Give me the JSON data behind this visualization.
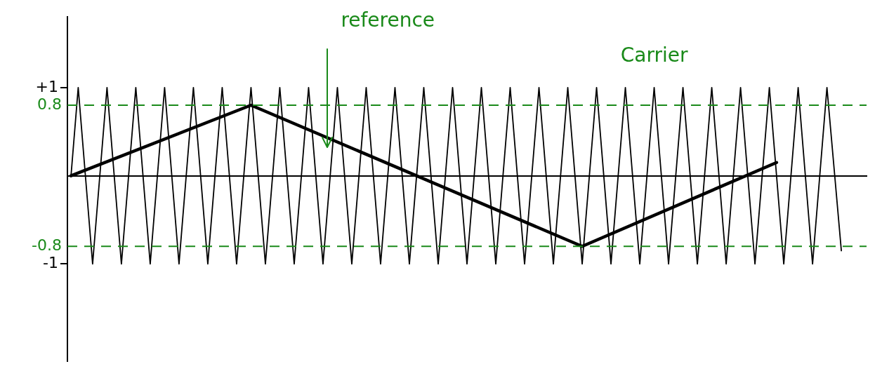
{
  "chart_data": {
    "type": "line",
    "categories": [
      null,
      null,
      null,
      null,
      null,
      null,
      null,
      null,
      null,
      null,
      null,
      null,
      null,
      null,
      null,
      null,
      null,
      null,
      null,
      null,
      null,
      null,
      null,
      null,
      null,
      null,
      null,
      null,
      null,
      null,
      null,
      null,
      null,
      null,
      null,
      null,
      null,
      null,
      null,
      null,
      null,
      null,
      null,
      null,
      null,
      null,
      null,
      null,
      null,
      null,
      null,
      null,
      null,
      null,
      null,
      null,
      null,
      null,
      null,
      null,
      null,
      null,
      null,
      null,
      null,
      null,
      null,
      null,
      null,
      null,
      null,
      null,
      null,
      null,
      null,
      null,
      null,
      null,
      null,
      null,
      null,
      null,
      null,
      null,
      null,
      null,
      null,
      null,
      null,
      null,
      null,
      null,
      null,
      null,
      null,
      null,
      null,
      null,
      null,
      null,
      null,
      null,
      null,
      null,
      null,
      null,
      null,
      null,
      null,
      null,
      null
    ],
    "series": [
      {
        "name": "Carrier",
        "color": "#000000",
        "values": [
          0,
          1,
          null,
          -1,
          null,
          1,
          null,
          -1,
          null,
          1,
          null,
          -1,
          null,
          1,
          null,
          -1,
          null,
          1,
          null,
          -1,
          null,
          1,
          null,
          -1,
          null,
          1,
          null,
          -1,
          null,
          1,
          null,
          -1,
          null,
          1,
          null,
          -1,
          null,
          1,
          null,
          -1,
          null,
          1,
          null,
          -1,
          null,
          1,
          null,
          -1,
          null,
          1,
          null,
          -1,
          null,
          1,
          null,
          -1,
          null,
          1,
          null,
          -1,
          null,
          1,
          null,
          -1,
          null,
          1,
          null,
          -1,
          null,
          1,
          null,
          -1,
          null,
          1,
          null,
          -1,
          null,
          1,
          null,
          -1,
          null,
          1,
          null,
          -1,
          null,
          1,
          null,
          -1,
          null,
          1,
          null,
          -1,
          null,
          1,
          null,
          -1,
          null,
          1,
          null,
          -1,
          null,
          1,
          null,
          -1,
          null,
          1,
          null,
          -0.85,
          null,
          null,
          null
        ]
      },
      {
        "name": "reference",
        "color": "#000000",
        "values": [
          0,
          null,
          null,
          null,
          null,
          null,
          null,
          null,
          null,
          null,
          null,
          null,
          null,
          null,
          null,
          null,
          null,
          null,
          null,
          null,
          null,
          null,
          null,
          null,
          null,
          0.8,
          null,
          null,
          null,
          null,
          null,
          null,
          null,
          null,
          null,
          null,
          null,
          null,
          null,
          null,
          null,
          null,
          null,
          null,
          null,
          null,
          null,
          null,
          0,
          null,
          null,
          null,
          null,
          null,
          null,
          null,
          null,
          null,
          null,
          null,
          null,
          null,
          null,
          null,
          null,
          null,
          null,
          null,
          null,
          null,
          null,
          -0.8,
          null,
          null,
          null,
          null,
          null,
          null,
          null,
          null,
          null,
          null,
          null,
          null,
          null,
          null,
          null,
          null,
          null,
          null,
          null,
          null,
          null,
          null,
          null,
          null,
          null,
          null,
          0.15,
          null,
          null,
          null,
          null,
          null,
          null,
          null,
          null,
          null,
          null,
          null,
          null
        ]
      }
    ],
    "ylim": [
      -2.1,
      1.8
    ],
    "yticks": [
      {
        "value": 1,
        "label": "+1"
      },
      -1
    ],
    "ref_lines": [
      {
        "axis": "y",
        "value": 0.8,
        "label": "0.8",
        "color": "#1a8a1a",
        "line_style": "dashed"
      },
      {
        "axis": "y",
        "value": -0.8,
        "label": "-0.8",
        "color": "#1a8a1a",
        "line_style": "dashed"
      }
    ],
    "tick_labels": "y",
    "grid": false,
    "legend": false,
    "marker": "none",
    "line_style": "solid"
  }
}
